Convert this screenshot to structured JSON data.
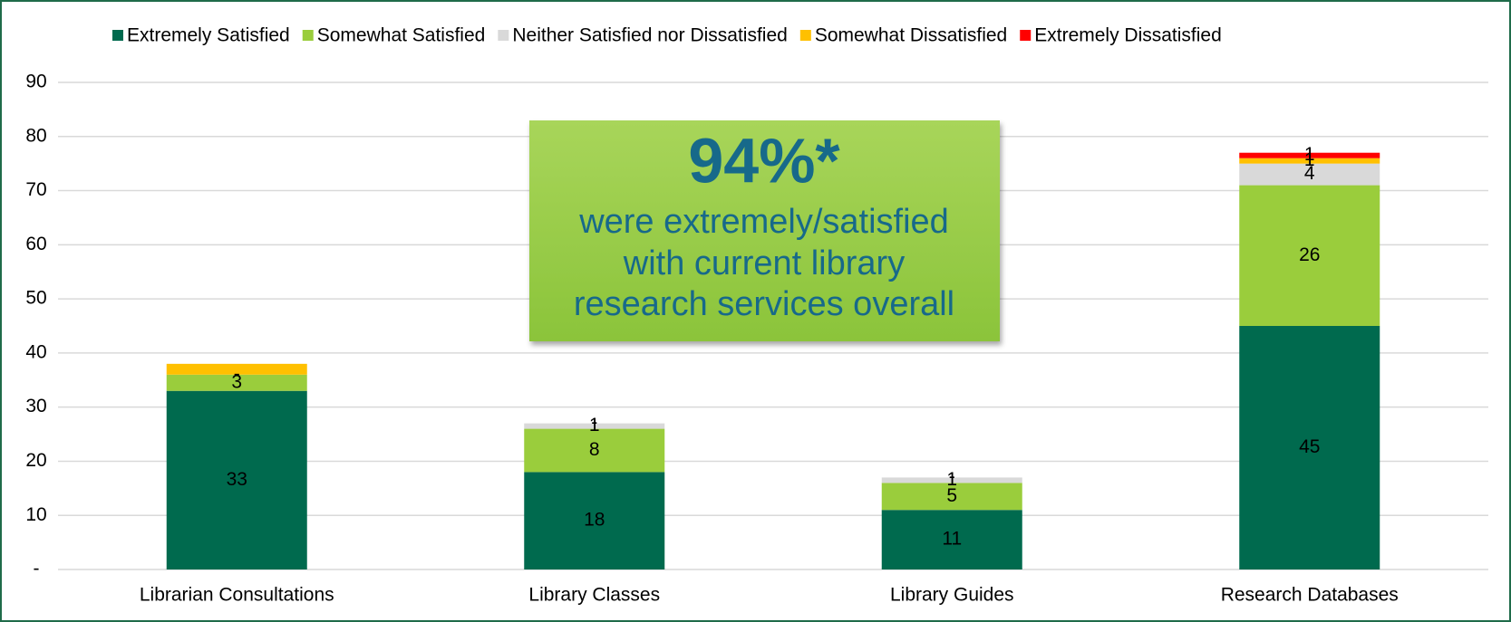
{
  "chart_data": {
    "type": "stacked_bar",
    "categories": [
      "Librarian Consultations",
      "Library Classes",
      "Library Guides",
      "Research Databases"
    ],
    "series": [
      {
        "name": "Extremely Satisfied",
        "color": "#006a4e",
        "values": [
          33,
          18,
          11,
          45
        ],
        "value_labels": [
          "33",
          "18",
          "11",
          "45"
        ]
      },
      {
        "name": "Somewhat Satisfied",
        "color": "#9acd3c",
        "values": [
          3,
          8,
          5,
          26
        ],
        "value_labels": [
          "3",
          "8",
          "5",
          "26"
        ]
      },
      {
        "name": "Neither Satisfied nor Dissatisfied",
        "color": "#d9d9d9",
        "values": [
          0,
          1,
          1,
          4
        ],
        "value_labels": [
          "-",
          "1",
          "1",
          "4"
        ]
      },
      {
        "name": "Somewhat Dissatisfied",
        "color": "#ffc000",
        "values": [
          2,
          0,
          0,
          1
        ],
        "value_labels": [
          null,
          "-",
          "-",
          "1"
        ]
      },
      {
        "name": "Extremely Dissatisfied",
        "color": "#ff0000",
        "values": [
          0,
          0,
          0,
          1
        ],
        "value_labels": [
          null,
          null,
          null,
          "1"
        ]
      }
    ],
    "ylim": [
      0,
      90
    ],
    "yticks": [
      {
        "value": 0,
        "label": "-"
      },
      10,
      20,
      30,
      40,
      50,
      60,
      70,
      80,
      90
    ],
    "grid": true,
    "legend": "top",
    "callout": {
      "headline": "94%*",
      "lines": [
        "were extremely/satisfied",
        "with current library",
        "research services overall"
      ]
    }
  }
}
